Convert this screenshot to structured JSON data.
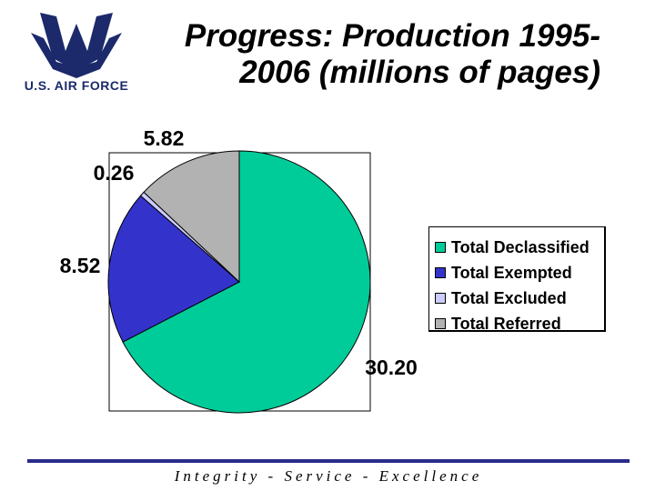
{
  "logo": {
    "text": "U.S. AIR FORCE",
    "icon": "air-force-wings-icon",
    "color": "#1c2a6b"
  },
  "title": {
    "line1": "Progress: Production 1995-",
    "line2": "2006 (millions of pages)"
  },
  "chart_data": {
    "type": "pie",
    "title": "Progress: Production 1995-2006 (millions of pages)",
    "legend_position": "right",
    "slices": [
      {
        "name": "Total Declassified",
        "value": 30.2,
        "label": "30.20",
        "color": "#00cc99"
      },
      {
        "name": "Total Exempted",
        "value": 8.52,
        "label": "8.52",
        "color": "#3333cc"
      },
      {
        "name": "Total Excluded",
        "value": 0.26,
        "label": "0.26",
        "color": "#ccccff"
      },
      {
        "name": "Total Referred",
        "value": 5.82,
        "label": "5.82",
        "color": "#b2b2b2"
      }
    ]
  },
  "footer": {
    "text": "Integrity - Service - Excellence",
    "line_color": "#2a2a8a"
  }
}
